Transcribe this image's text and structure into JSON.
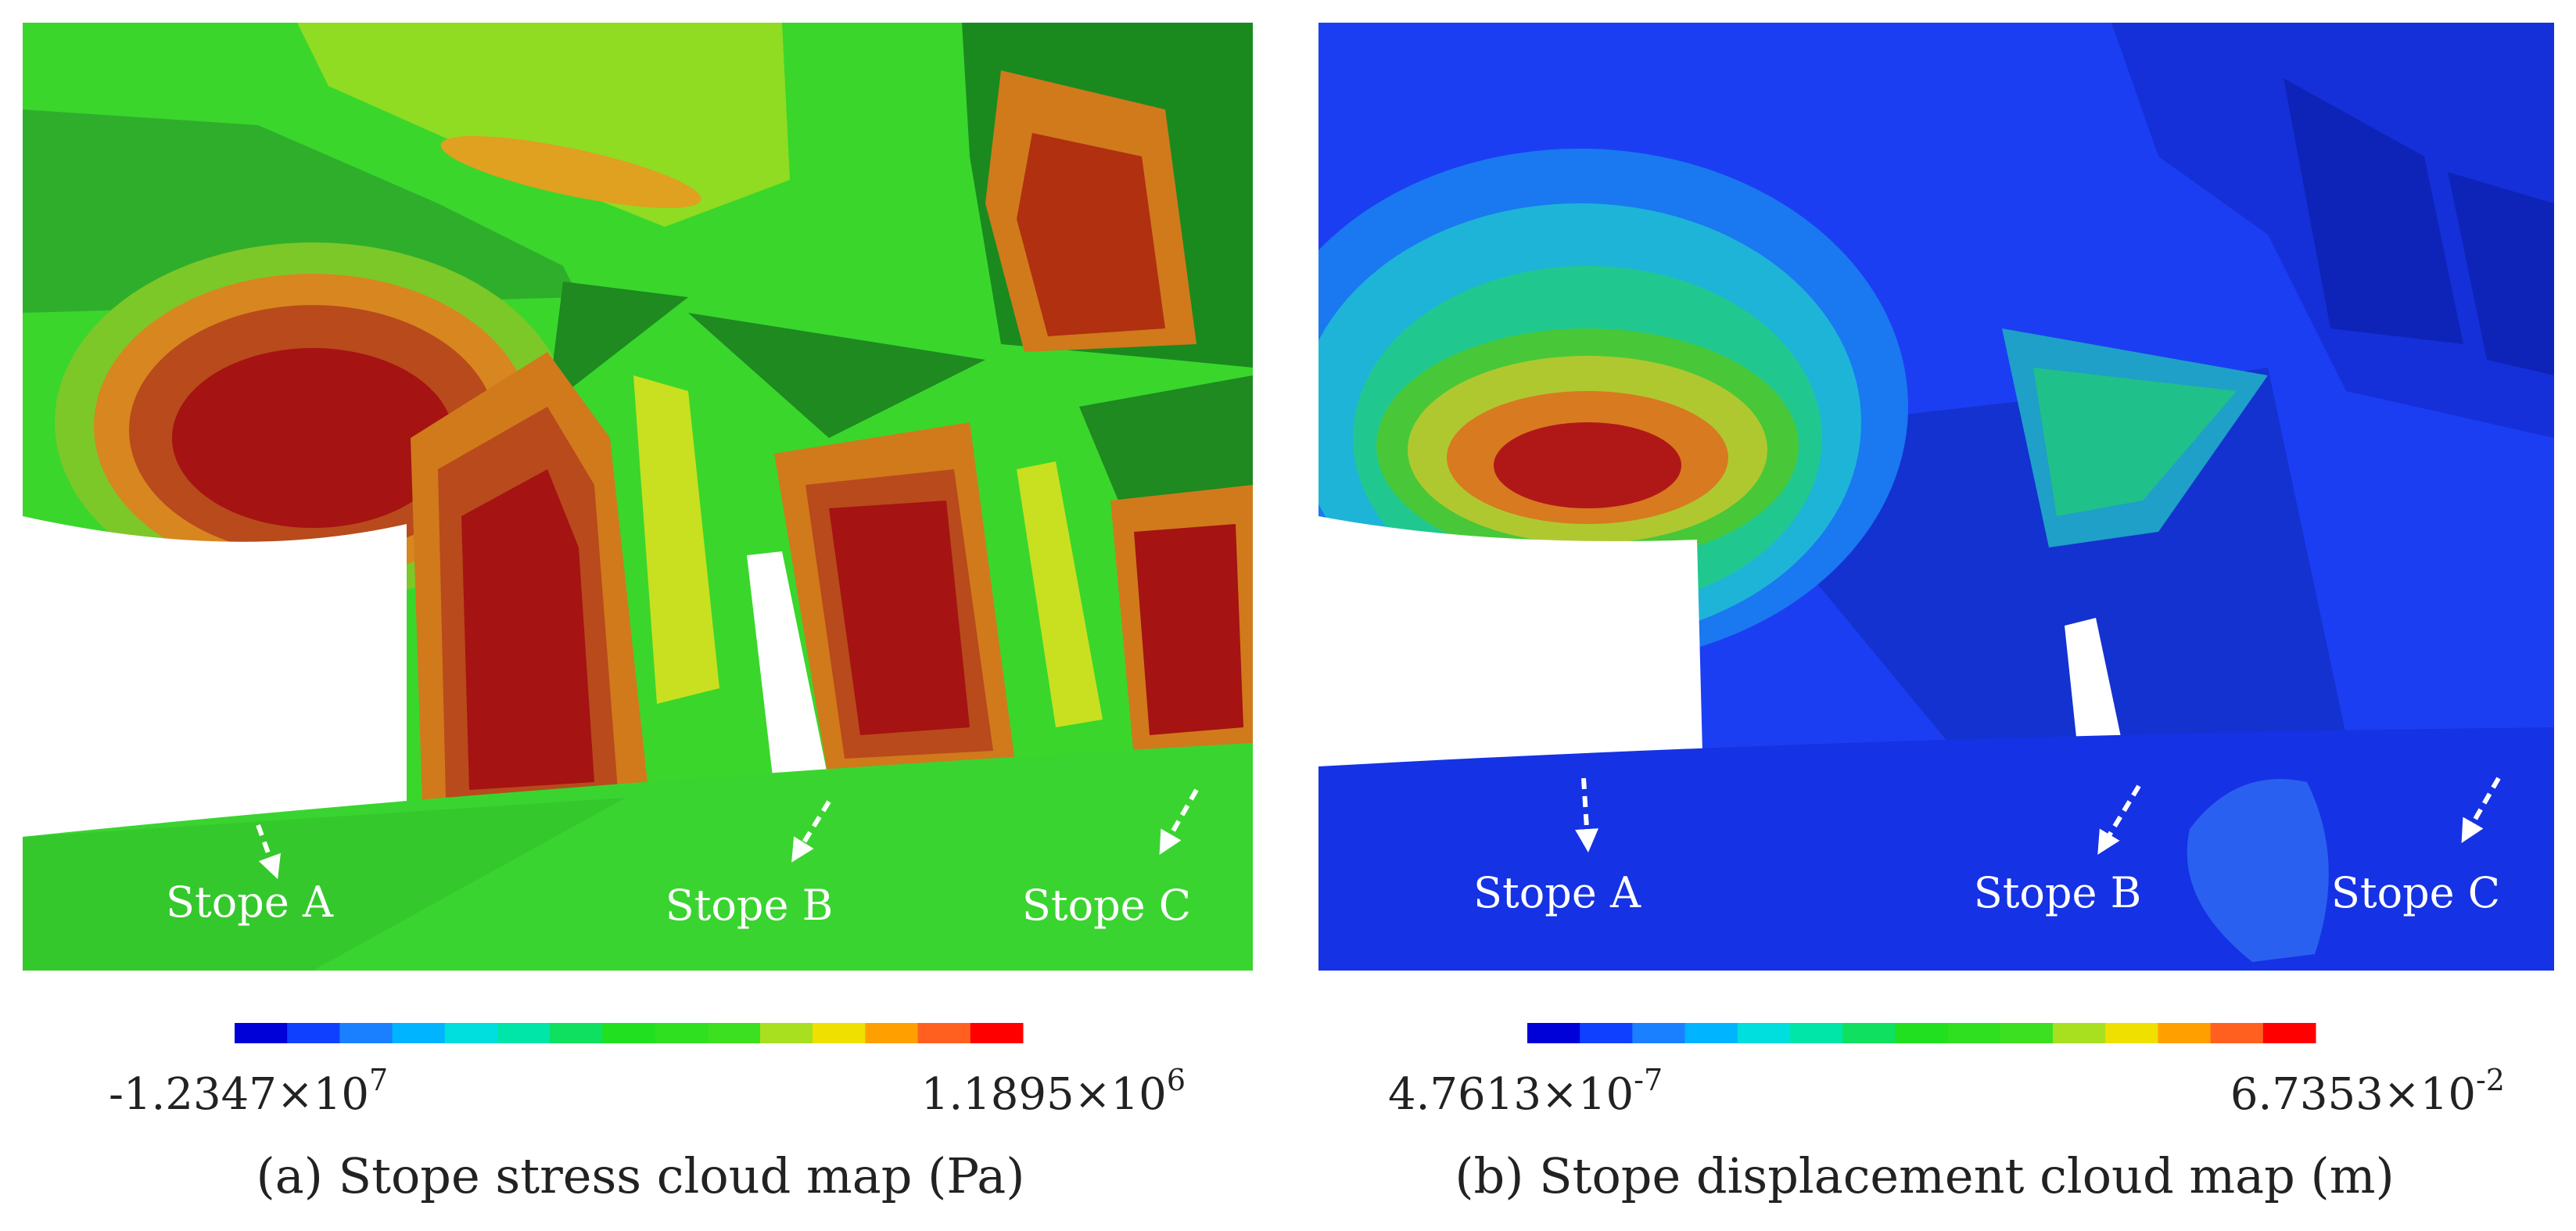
{
  "panels": [
    {
      "caption": "(a) Stope stress cloud map (Pa)",
      "labels": [
        "Stope A",
        "Stope B",
        "Stope C"
      ],
      "colorbar": {
        "min": {
          "mantissa": "-1.2347×10",
          "exponent": "7"
        },
        "max": {
          "mantissa": "1.1895×10",
          "exponent": "6"
        }
      }
    },
    {
      "caption": "(b) Stope displacement cloud map (m)",
      "labels": [
        "Stope A",
        "Stope B",
        "Stope C"
      ],
      "colorbar": {
        "min": {
          "mantissa": "4.7613×10",
          "exponent": "-7"
        },
        "max": {
          "mantissa": "6.7353×10",
          "exponent": "-2"
        }
      }
    }
  ]
}
